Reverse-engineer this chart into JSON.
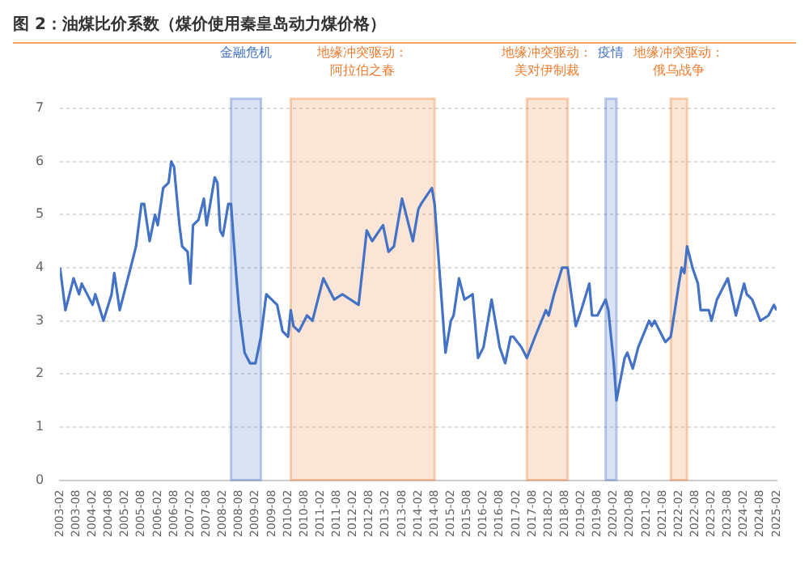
{
  "chart_data": {
    "type": "line",
    "title": "图 2：油煤比价系数（煤价使用秦皇岛动力煤价格）",
    "x": [
      "2003-02",
      "2003-04",
      "2003-07",
      "2003-09",
      "2003-10",
      "2004-02",
      "2004-03",
      "2004-06",
      "2004-09",
      "2004-10",
      "2004-12",
      "2005-03",
      "2005-06",
      "2005-08",
      "2005-09",
      "2005-11",
      "2006-01",
      "2006-02",
      "2006-04",
      "2006-06",
      "2006-07",
      "2006-08",
      "2006-10",
      "2006-11",
      "2007-01",
      "2007-02",
      "2007-03",
      "2007-05",
      "2007-07",
      "2007-08",
      "2007-11",
      "2007-12",
      "2008-01",
      "2008-02",
      "2008-04",
      "2008-05",
      "2008-07",
      "2008-08",
      "2008-10",
      "2008-12",
      "2009-02",
      "2009-04",
      "2009-06",
      "2009-08",
      "2009-10",
      "2009-12",
      "2010-02",
      "2010-03",
      "2010-04",
      "2010-06",
      "2010-09",
      "2010-11",
      "2011-02",
      "2011-03",
      "2011-05",
      "2011-07",
      "2011-10",
      "2012-04",
      "2012-07",
      "2012-09",
      "2013-01",
      "2013-03",
      "2013-05",
      "2013-08",
      "2013-09",
      "2013-12",
      "2014-02",
      "2014-03",
      "2014-07",
      "2014-08",
      "2014-10",
      "2014-12",
      "2015-02",
      "2015-03",
      "2015-05",
      "2015-07",
      "2015-10",
      "2015-12",
      "2016-02",
      "2016-05",
      "2016-08",
      "2016-10",
      "2016-12",
      "2017-01",
      "2017-04",
      "2017-06",
      "2017-09",
      "2018-01",
      "2018-02",
      "2018-04",
      "2018-07",
      "2018-09",
      "2018-12",
      "2019-02",
      "2019-05",
      "2019-06",
      "2019-08",
      "2019-11",
      "2019-12",
      "2020-02",
      "2020-03",
      "2020-06",
      "2020-07",
      "2020-09",
      "2020-11",
      "2021-03",
      "2021-04",
      "2021-05",
      "2021-08",
      "2021-09",
      "2021-11",
      "2022-02",
      "2022-03",
      "2022-04",
      "2022-05",
      "2022-07",
      "2022-09",
      "2022-10",
      "2022-12",
      "2023-01",
      "2023-02",
      "2023-04",
      "2023-08",
      "2023-11",
      "2024-02",
      "2024-03",
      "2024-05",
      "2024-08",
      "2024-11",
      "2025-01",
      "2025-02"
    ],
    "series": [
      {
        "color": "#4472c4",
        "values": [
          4.0,
          3.2,
          3.8,
          3.5,
          3.7,
          3.3,
          3.5,
          3.0,
          3.5,
          3.9,
          3.2,
          3.8,
          4.4,
          5.2,
          5.2,
          4.5,
          5.0,
          4.8,
          5.5,
          5.6,
          6.0,
          5.9,
          4.8,
          4.4,
          4.3,
          3.7,
          4.8,
          4.9,
          5.3,
          4.8,
          5.7,
          5.6,
          4.7,
          4.6,
          5.2,
          5.2,
          3.8,
          3.2,
          2.4,
          2.2,
          2.2,
          2.7,
          3.5,
          3.4,
          3.3,
          2.8,
          2.7,
          3.2,
          2.9,
          2.8,
          3.1,
          3.0,
          3.6,
          3.8,
          3.6,
          3.4,
          3.5,
          3.3,
          4.7,
          4.5,
          4.8,
          4.3,
          4.4,
          5.3,
          5.1,
          4.5,
          5.1,
          5.2,
          5.5,
          5.2,
          3.8,
          2.4,
          3.0,
          3.1,
          3.8,
          3.4,
          3.5,
          2.3,
          2.5,
          3.4,
          2.5,
          2.2,
          2.7,
          2.7,
          2.5,
          2.3,
          2.7,
          3.2,
          3.1,
          3.5,
          4.0,
          4.0,
          2.9,
          3.2,
          3.7,
          3.1,
          3.1,
          3.4,
          3.2,
          2.2,
          1.5,
          2.3,
          2.4,
          2.1,
          2.5,
          3.0,
          2.9,
          3.0,
          2.7,
          2.6,
          2.7,
          3.7,
          4.0,
          3.9,
          4.4,
          4.0,
          3.7,
          3.2,
          3.2,
          3.2,
          3.0,
          3.4,
          3.8,
          3.1,
          3.7,
          3.5,
          3.4,
          3.0,
          3.1,
          3.3,
          3.2
        ]
      }
    ],
    "xlim": [
      "2003-02",
      "2025-02"
    ],
    "xticks": [
      "2003-02",
      "2003-08",
      "2004-02",
      "2004-08",
      "2005-02",
      "2005-08",
      "2006-02",
      "2006-08",
      "2007-02",
      "2007-08",
      "2008-02",
      "2008-08",
      "2009-02",
      "2009-08",
      "2010-02",
      "2010-08",
      "2011-02",
      "2011-08",
      "2012-02",
      "2012-08",
      "2013-02",
      "2013-08",
      "2014-02",
      "2014-08",
      "2015-02",
      "2015-08",
      "2016-02",
      "2016-08",
      "2017-02",
      "2017-08",
      "2018-02",
      "2018-08",
      "2019-02",
      "2019-08",
      "2020-02",
      "2020-08",
      "2021-02",
      "2021-08",
      "2022-02",
      "2022-08",
      "2023-02",
      "2023-08",
      "2024-02",
      "2024-08",
      "2025-02"
    ],
    "ylim": [
      0,
      7
    ],
    "yticks": [
      0,
      1,
      2,
      3,
      4,
      5,
      6,
      7
    ],
    "grid": "y",
    "marker": "none",
    "line_style": "solid",
    "bands": [
      {
        "axis": "x",
        "from": "2008-05",
        "to": "2009-04",
        "label": "金融危机",
        "color": "#4472c4"
      },
      {
        "axis": "x",
        "from": "2010-03",
        "to": "2014-08",
        "label": "地缘冲突驱动：阿拉伯之春",
        "color": "#ed7d31"
      },
      {
        "axis": "x",
        "from": "2017-06",
        "to": "2018-09",
        "label": "地缘冲突驱动：美对伊制裁",
        "color": "#ed7d31"
      },
      {
        "axis": "x",
        "from": "2019-11",
        "to": "2020-03",
        "label": "疫情",
        "color": "#4472c4"
      },
      {
        "axis": "x",
        "from": "2021-11",
        "to": "2022-05",
        "label": "地缘冲突驱动：俄乌战争",
        "color": "#ed7d31"
      }
    ]
  }
}
